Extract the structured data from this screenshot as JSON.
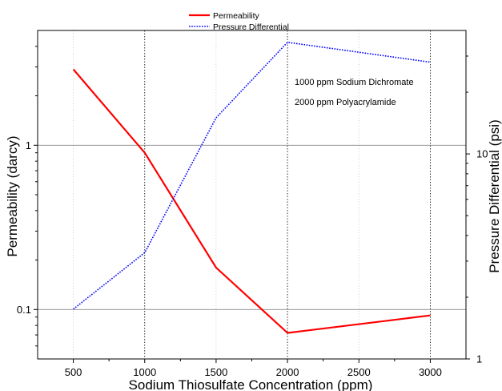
{
  "chart_data": {
    "type": "line",
    "xlabel": "Sodium Thiosulfate Concentration (ppm)",
    "ylabel_left": "Permeability (darcy)",
    "ylabel_right": "Pressure Differential (psi)",
    "x_ticks": [
      500,
      1000,
      1500,
      2000,
      2500,
      3000
    ],
    "x_tick_labels": [
      "500",
      "1000",
      "1500",
      "2000",
      "2500",
      "3000"
    ],
    "xlim": [
      250,
      3250
    ],
    "y_left": {
      "scale": "log",
      "lim": [
        0.05,
        5.0
      ],
      "ticks": [
        0.1,
        1
      ],
      "tick_labels": [
        "0.1",
        "1"
      ]
    },
    "y_right": {
      "scale": "log",
      "lim": [
        1,
        40
      ],
      "ticks": [
        1,
        10
      ],
      "tick_labels": [
        "1",
        "10"
      ]
    },
    "grid": {
      "x": "dotted",
      "y": "at left-axis major ticks"
    },
    "legend_position": "top-center",
    "series": [
      {
        "name": "Permeability",
        "axis": "left",
        "color": "#ff0000",
        "style": "solid",
        "x": [
          500,
          1000,
          1500,
          2000,
          3000
        ],
        "values": [
          2.9,
          0.9,
          0.18,
          0.072,
          0.092
        ]
      },
      {
        "name": "Pressure Differential",
        "axis": "right",
        "color": "#0000ff",
        "style": "dotted",
        "x": [
          500,
          1000,
          1500,
          2000,
          3000
        ],
        "values": [
          1.75,
          3.3,
          15,
          35,
          28
        ]
      }
    ],
    "annotations": [
      "1000 ppm Sodium Dichromate",
      "2000 ppm Polyacrylamide"
    ]
  }
}
